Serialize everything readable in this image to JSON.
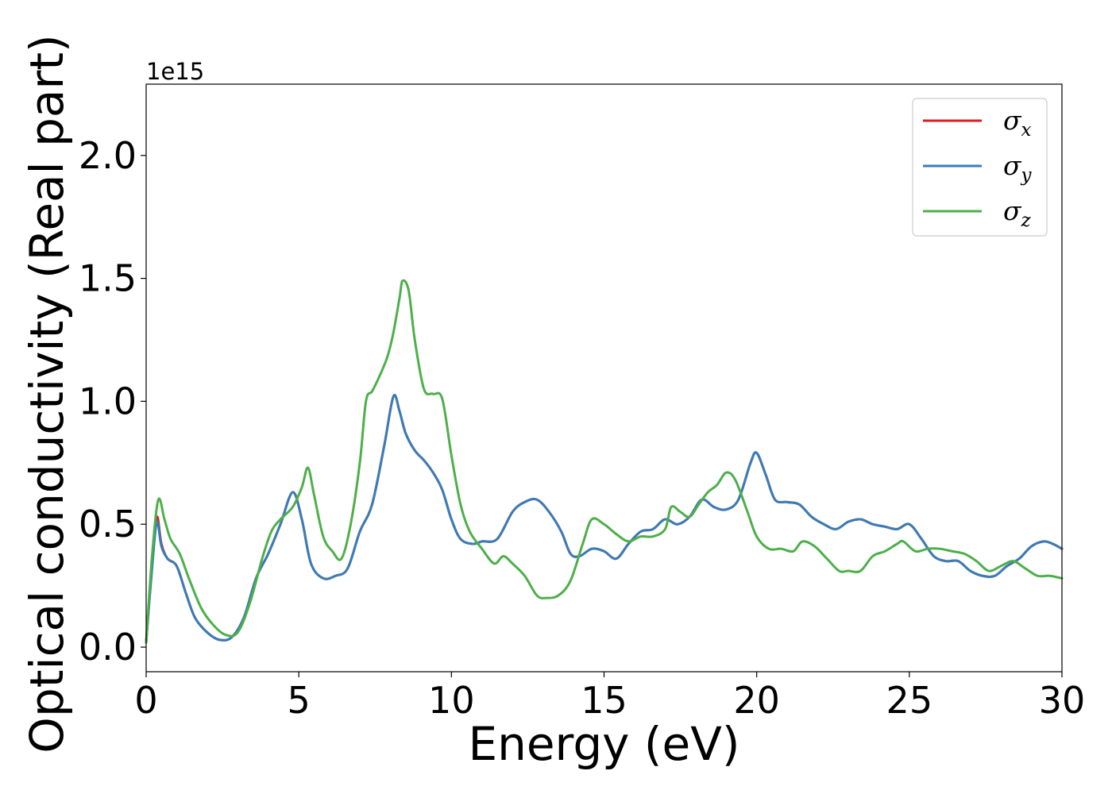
{
  "chart_data": {
    "type": "line",
    "title": "",
    "xlabel": "Energy (eV)",
    "ylabel": "Optical conductivity (Real part)",
    "y_offset_label": "1e15",
    "xlim": [
      0,
      30
    ],
    "ylim": [
      -0.1,
      2.29
    ],
    "x_ticks": [
      0,
      5,
      10,
      15,
      20,
      25,
      30
    ],
    "x_tick_labels": [
      "0",
      "5",
      "10",
      "15",
      "20",
      "25",
      "30"
    ],
    "y_ticks": [
      0.0,
      0.5,
      1.0,
      1.5,
      2.0
    ],
    "y_tick_labels": [
      "0.0",
      "0.5",
      "1.0",
      "1.5",
      "2.0"
    ],
    "grid": false,
    "legend_position": "top-right",
    "series": [
      {
        "name": "σx",
        "symbol": "σ",
        "subscript": "x",
        "color": "#e41a1c",
        "x": [
          0,
          0.2,
          0.35,
          0.5,
          0.7,
          1.0,
          1.3,
          1.6,
          2.0,
          2.4,
          2.8,
          3.2,
          3.6,
          4.0,
          4.4,
          4.8,
          5.1,
          5.4,
          5.8,
          6.2,
          6.6,
          7.0,
          7.4,
          7.8,
          8.1,
          8.3,
          8.5,
          8.8,
          9.1,
          9.4,
          9.7,
          10.0,
          10.3,
          10.7,
          11.0,
          11.5,
          12.0,
          12.4,
          12.8,
          13.2,
          13.6,
          13.9,
          14.2,
          14.6,
          15.0,
          15.4,
          15.8,
          16.2,
          16.6,
          17.0,
          17.4,
          17.8,
          18.2,
          18.6,
          19.0,
          19.4,
          19.8,
          20.0,
          20.3,
          20.6,
          21.0,
          21.4,
          21.8,
          22.2,
          22.6,
          23.0,
          23.4,
          23.8,
          24.2,
          24.6,
          25.0,
          25.4,
          25.8,
          26.2,
          26.6,
          27.0,
          27.4,
          27.8,
          28.2,
          28.6,
          29.0,
          29.4,
          29.7,
          30.0
        ],
        "values": [
          0.02,
          0.35,
          0.53,
          0.42,
          0.36,
          0.33,
          0.22,
          0.12,
          0.06,
          0.03,
          0.04,
          0.12,
          0.28,
          0.38,
          0.5,
          0.63,
          0.52,
          0.34,
          0.28,
          0.29,
          0.32,
          0.47,
          0.58,
          0.82,
          1.02,
          0.96,
          0.87,
          0.8,
          0.76,
          0.71,
          0.64,
          0.52,
          0.44,
          0.42,
          0.43,
          0.44,
          0.55,
          0.59,
          0.6,
          0.55,
          0.47,
          0.38,
          0.37,
          0.4,
          0.39,
          0.36,
          0.42,
          0.47,
          0.48,
          0.52,
          0.5,
          0.53,
          0.6,
          0.57,
          0.56,
          0.6,
          0.75,
          0.79,
          0.7,
          0.6,
          0.59,
          0.58,
          0.53,
          0.5,
          0.48,
          0.51,
          0.52,
          0.5,
          0.49,
          0.48,
          0.5,
          0.44,
          0.37,
          0.35,
          0.35,
          0.31,
          0.29,
          0.29,
          0.33,
          0.36,
          0.41,
          0.43,
          0.42,
          0.4
        ]
      },
      {
        "name": "σy",
        "symbol": "σ",
        "subscript": "y",
        "color": "#377eb8",
        "x": [
          0,
          0.2,
          0.35,
          0.5,
          0.7,
          1.0,
          1.3,
          1.6,
          2.0,
          2.4,
          2.8,
          3.2,
          3.6,
          4.0,
          4.4,
          4.8,
          5.1,
          5.4,
          5.8,
          6.2,
          6.6,
          7.0,
          7.4,
          7.8,
          8.1,
          8.3,
          8.5,
          8.8,
          9.1,
          9.4,
          9.7,
          10.0,
          10.3,
          10.7,
          11.0,
          11.5,
          12.0,
          12.4,
          12.8,
          13.2,
          13.6,
          13.9,
          14.2,
          14.6,
          15.0,
          15.4,
          15.8,
          16.2,
          16.6,
          17.0,
          17.4,
          17.8,
          18.2,
          18.6,
          19.0,
          19.4,
          19.8,
          20.0,
          20.3,
          20.6,
          21.0,
          21.4,
          21.8,
          22.2,
          22.6,
          23.0,
          23.4,
          23.8,
          24.2,
          24.6,
          25.0,
          25.4,
          25.8,
          26.2,
          26.6,
          27.0,
          27.4,
          27.8,
          28.2,
          28.6,
          29.0,
          29.4,
          29.7,
          30.0
        ],
        "values": [
          0.02,
          0.33,
          0.51,
          0.41,
          0.36,
          0.33,
          0.22,
          0.12,
          0.06,
          0.03,
          0.04,
          0.12,
          0.28,
          0.38,
          0.5,
          0.63,
          0.52,
          0.34,
          0.28,
          0.29,
          0.32,
          0.47,
          0.58,
          0.82,
          1.02,
          0.96,
          0.87,
          0.8,
          0.76,
          0.71,
          0.64,
          0.52,
          0.44,
          0.42,
          0.43,
          0.44,
          0.55,
          0.59,
          0.6,
          0.55,
          0.47,
          0.38,
          0.37,
          0.4,
          0.39,
          0.36,
          0.42,
          0.47,
          0.48,
          0.52,
          0.5,
          0.53,
          0.6,
          0.57,
          0.56,
          0.6,
          0.75,
          0.79,
          0.7,
          0.6,
          0.59,
          0.58,
          0.53,
          0.5,
          0.48,
          0.51,
          0.52,
          0.5,
          0.49,
          0.48,
          0.5,
          0.44,
          0.37,
          0.35,
          0.35,
          0.31,
          0.29,
          0.29,
          0.33,
          0.36,
          0.41,
          0.43,
          0.42,
          0.4
        ]
      },
      {
        "name": "σz",
        "symbol": "σ",
        "subscript": "z",
        "color": "#4daf4a",
        "x": [
          0,
          0.2,
          0.4,
          0.6,
          0.8,
          1.1,
          1.4,
          1.8,
          2.2,
          2.6,
          3.0,
          3.4,
          3.8,
          4.1,
          4.4,
          4.8,
          5.1,
          5.3,
          5.5,
          5.8,
          6.1,
          6.4,
          6.7,
          7.0,
          7.2,
          7.4,
          7.6,
          7.9,
          8.1,
          8.3,
          8.4,
          8.6,
          8.8,
          9.1,
          9.4,
          9.7,
          10.0,
          10.3,
          10.6,
          11.0,
          11.4,
          11.7,
          12.0,
          12.4,
          12.8,
          13.1,
          13.5,
          13.9,
          14.3,
          14.6,
          15.0,
          15.4,
          15.8,
          16.2,
          16.6,
          17.0,
          17.2,
          17.5,
          17.8,
          18.1,
          18.4,
          18.7,
          19.0,
          19.3,
          19.7,
          20.0,
          20.4,
          20.8,
          21.2,
          21.5,
          21.9,
          22.3,
          22.7,
          23.0,
          23.4,
          23.8,
          24.2,
          24.6,
          24.8,
          25.2,
          25.6,
          26.0,
          26.4,
          26.8,
          27.2,
          27.6,
          28.0,
          28.4,
          28.8,
          29.2,
          29.6,
          30.0
        ],
        "values": [
          0.02,
          0.38,
          0.6,
          0.52,
          0.44,
          0.38,
          0.28,
          0.16,
          0.09,
          0.05,
          0.06,
          0.18,
          0.36,
          0.47,
          0.52,
          0.57,
          0.65,
          0.73,
          0.62,
          0.45,
          0.39,
          0.36,
          0.5,
          0.75,
          1.0,
          1.04,
          1.09,
          1.18,
          1.28,
          1.42,
          1.49,
          1.45,
          1.25,
          1.05,
          1.03,
          1.01,
          0.78,
          0.58,
          0.47,
          0.4,
          0.34,
          0.37,
          0.34,
          0.29,
          0.21,
          0.2,
          0.21,
          0.27,
          0.42,
          0.52,
          0.5,
          0.46,
          0.43,
          0.45,
          0.45,
          0.48,
          0.57,
          0.55,
          0.53,
          0.58,
          0.63,
          0.66,
          0.71,
          0.68,
          0.55,
          0.45,
          0.4,
          0.4,
          0.39,
          0.43,
          0.41,
          0.36,
          0.31,
          0.31,
          0.31,
          0.37,
          0.39,
          0.42,
          0.43,
          0.39,
          0.4,
          0.4,
          0.39,
          0.38,
          0.35,
          0.31,
          0.33,
          0.35,
          0.32,
          0.29,
          0.29,
          0.28
        ]
      }
    ]
  }
}
